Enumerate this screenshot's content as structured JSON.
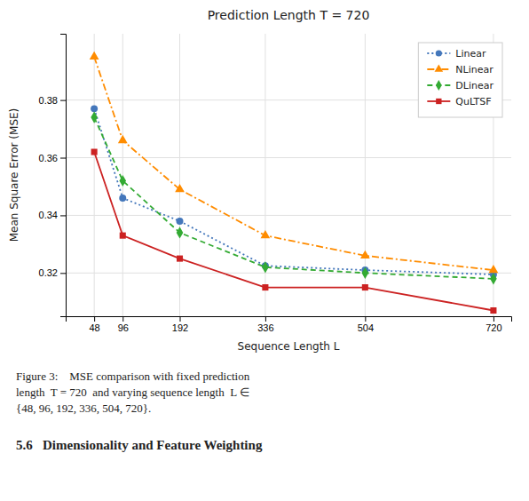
{
  "chart_data": {
    "type": "line",
    "title": "Prediction Length T = 720",
    "x_label": "Sequence Length L",
    "y_label": "Mean Square Error (MSE)",
    "x": [
      48,
      96,
      192,
      336,
      504,
      720
    ],
    "series": [
      {
        "name": "Linear",
        "color": "#4477bb",
        "marker": "circle",
        "line_style": "dotted",
        "values": [
          0.377,
          0.346,
          0.338,
          0.3225,
          0.321,
          0.3195
        ]
      },
      {
        "name": "NLinear",
        "color": "#ff8c00",
        "marker": "triangle",
        "line_style": "dashdot",
        "values": [
          0.395,
          0.366,
          0.349,
          0.333,
          0.326,
          0.321
        ]
      },
      {
        "name": "DLinear",
        "color": "#33aa33",
        "marker": "diamond",
        "line_style": "dashed",
        "values": [
          0.374,
          0.352,
          0.334,
          0.322,
          0.32,
          0.318
        ]
      },
      {
        "name": "QuLTSF",
        "color": "#cc2222",
        "marker": "square",
        "line_style": "solid",
        "values": [
          0.362,
          0.333,
          0.325,
          0.315,
          0.315,
          0.307
        ]
      }
    ],
    "xlim": [
      0,
      750
    ],
    "xticks": [
      48,
      96,
      192,
      336,
      504,
      720
    ],
    "ylim": [
      0.305,
      0.403
    ],
    "yticks": [
      0.32,
      0.34,
      0.36,
      0.38
    ],
    "grid": true,
    "legend": "upper right",
    "caption": [
      "Figure 3:    MSE comparison with fixed prediction",
      "length  T = 720  and varying sequence length  L ∈",
      "{48, 96, 192, 336, 504, 720}."
    ],
    "section_header": "5.6   Dimensionality and Feature Weighting"
  }
}
